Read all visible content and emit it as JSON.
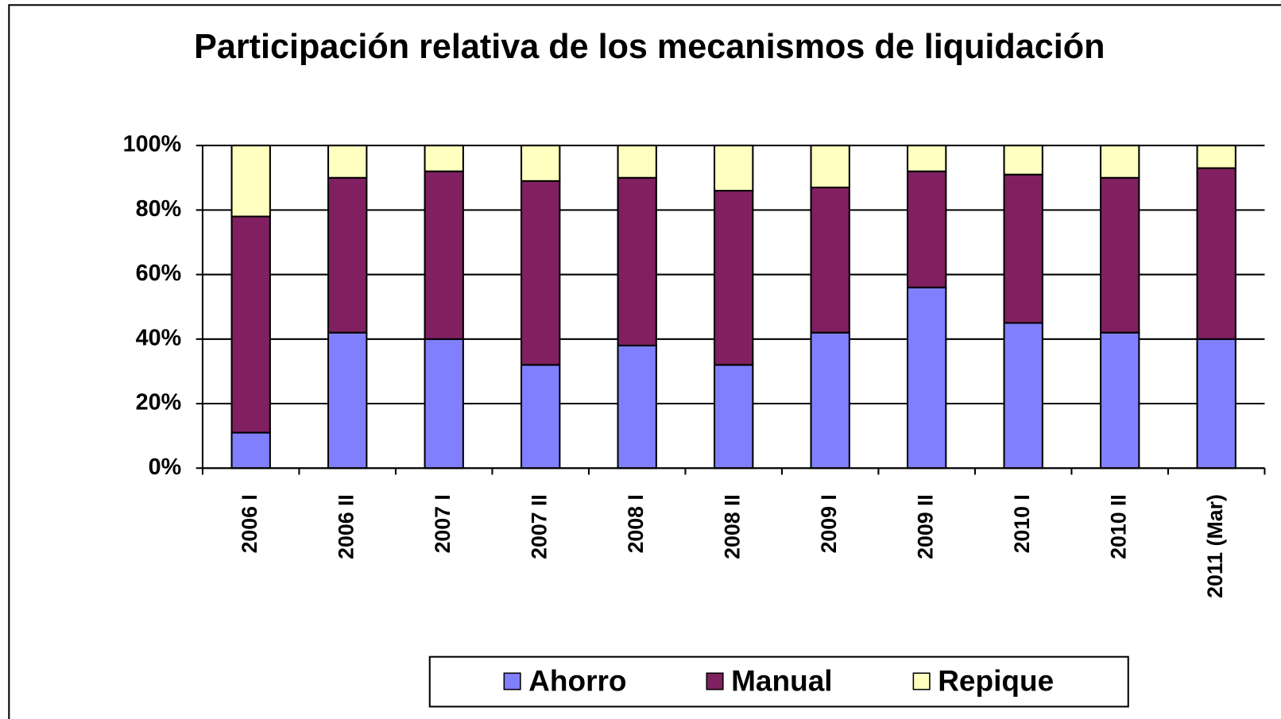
{
  "chart_data": {
    "type": "stacked_bar",
    "title": "Participación relativa de los mecanismos de liquidación",
    "categories": [
      "2006 I",
      "2006 II",
      "2007 I",
      "2007 II",
      "2008 I",
      "2008 II",
      "2009 I",
      "2009 II",
      "2010 I",
      "2010 II",
      "2011 (Mar)"
    ],
    "series": [
      {
        "name": "Ahorro",
        "color": "#8080ff",
        "values": [
          11,
          42,
          40,
          32,
          38,
          32,
          42,
          56,
          45,
          42,
          40
        ]
      },
      {
        "name": "Manual",
        "color": "#802060",
        "values": [
          67,
          48,
          52,
          57,
          52,
          54,
          45,
          36,
          46,
          48,
          53
        ]
      },
      {
        "name": "Repique",
        "color": "#ffffc0",
        "values": [
          22,
          10,
          8,
          11,
          10,
          14,
          13,
          8,
          9,
          10,
          7
        ]
      }
    ],
    "ylim": [
      0,
      100
    ],
    "yticks": [
      {
        "value": 0,
        "label": "0%"
      },
      {
        "value": 20,
        "label": "20%"
      },
      {
        "value": 40,
        "label": "40%"
      },
      {
        "value": 60,
        "label": "60%"
      },
      {
        "value": 80,
        "label": "80%"
      },
      {
        "value": 100,
        "label": "100%"
      }
    ],
    "grid": true,
    "legend": "bottom"
  }
}
